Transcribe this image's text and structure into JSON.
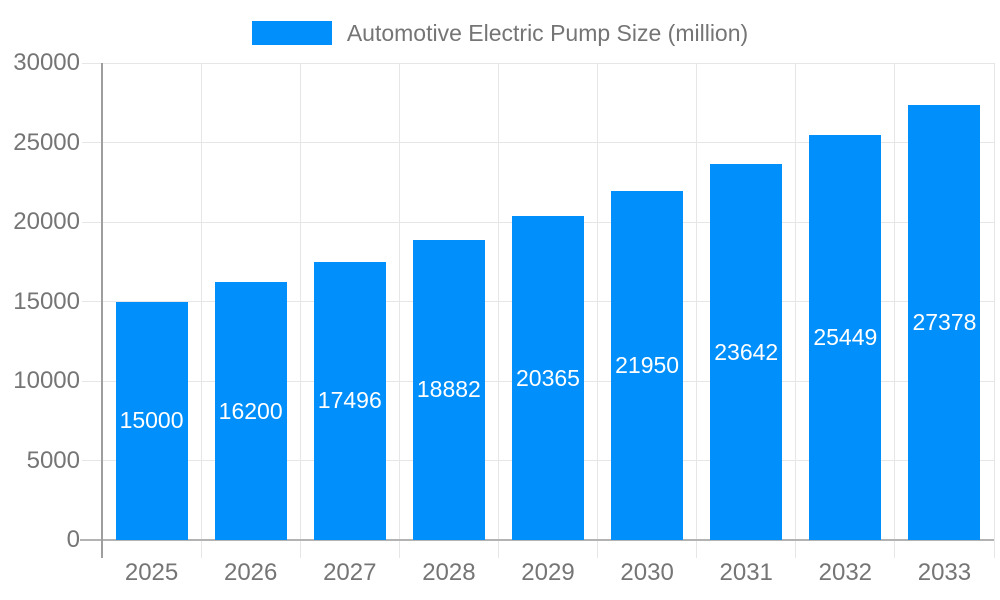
{
  "chart_data": {
    "type": "bar",
    "categories": [
      "2025",
      "2026",
      "2027",
      "2028",
      "2029",
      "2030",
      "2031",
      "2032",
      "2033"
    ],
    "series": [
      {
        "name": "Automotive Electric Pump Size (million)",
        "values": [
          15000,
          16200,
          17496,
          18882,
          20365,
          21950,
          23642,
          25449,
          27378
        ]
      }
    ],
    "title": "",
    "xlabel": "",
    "ylabel": "",
    "ylim": [
      0,
      30000
    ],
    "yticks": [
      0,
      5000,
      10000,
      15000,
      20000,
      25000,
      30000
    ],
    "grid": true,
    "bar_labels": true,
    "legend_position": "top-center",
    "colors": {
      "bar": "#008FFB",
      "bar_label": "#FFFFFF",
      "axis_text": "#757575",
      "grid": "#E6E6E6",
      "x_axis_line": "#B3B3B3",
      "y_axis_line": "#9E9E9E",
      "background": "#FFFFFF"
    }
  }
}
